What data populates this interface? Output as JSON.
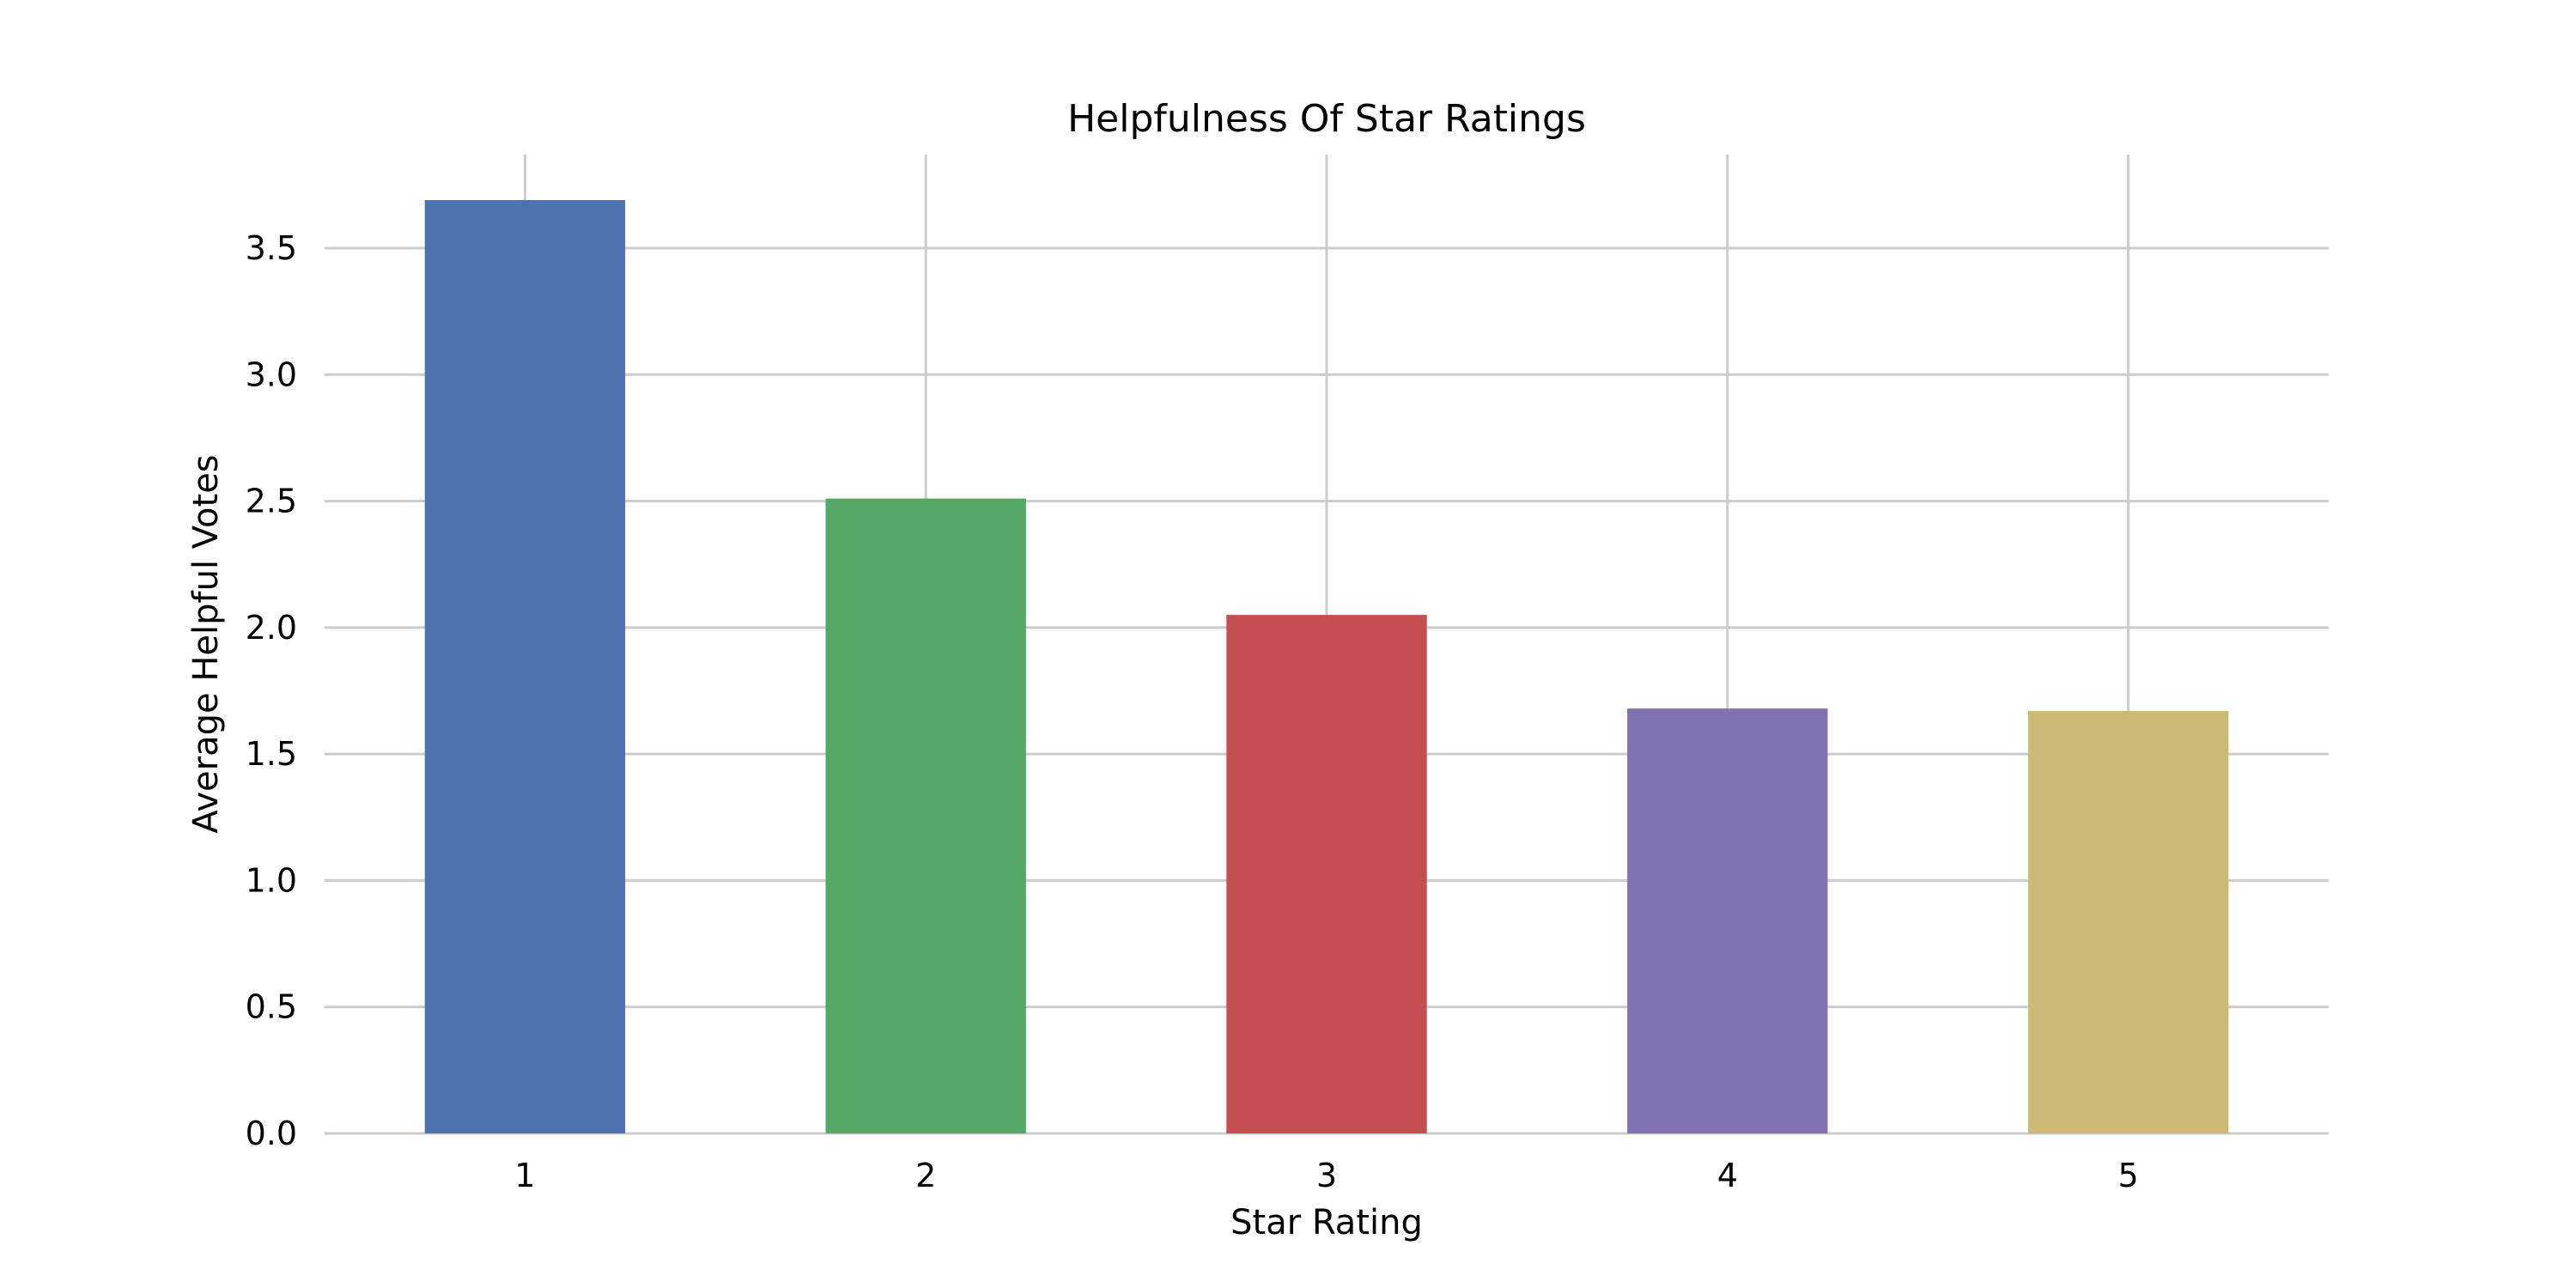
{
  "chart_data": {
    "type": "bar",
    "title": "Helpfulness Of Star Ratings",
    "xlabel": "Star Rating",
    "ylabel": "Average Helpful Votes",
    "categories": [
      "1",
      "2",
      "3",
      "4",
      "5"
    ],
    "values": [
      3.69,
      2.51,
      2.05,
      1.68,
      1.67
    ],
    "colors": [
      "#4c72b0",
      "#55a868",
      "#c44e52",
      "#8172b2",
      "#ccb974"
    ],
    "ylim": [
      0,
      3.87
    ],
    "yticks": [
      0.0,
      0.5,
      1.0,
      1.5,
      2.0,
      2.5,
      3.0,
      3.5
    ],
    "ytick_labels": [
      "0.0",
      "0.5",
      "1.0",
      "1.5",
      "2.0",
      "2.5",
      "3.0",
      "3.5"
    ],
    "grid": true,
    "legend": false
  }
}
